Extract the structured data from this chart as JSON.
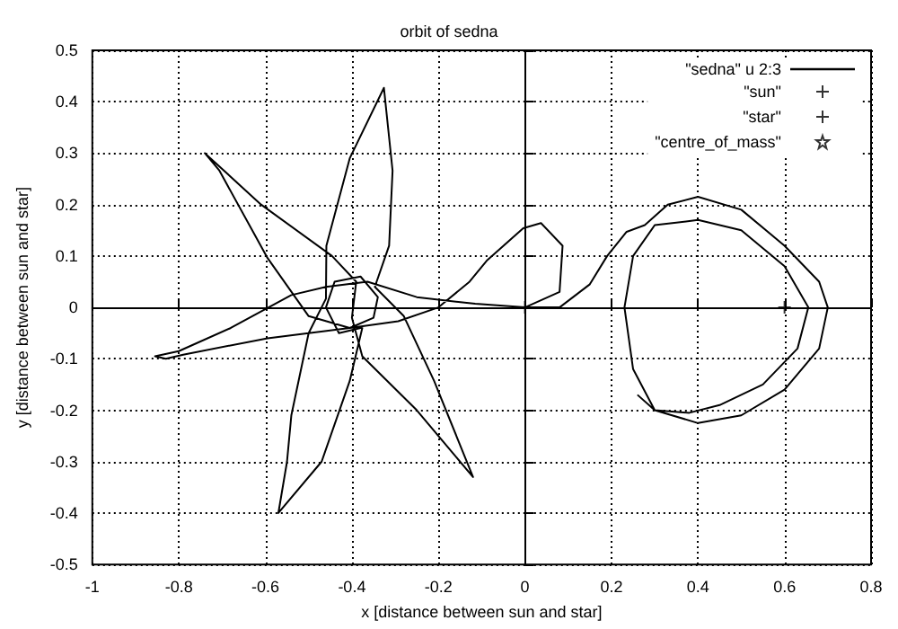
{
  "chart_data": {
    "type": "line",
    "title": "orbit of sedna",
    "xlabel": "x [distance between sun and star]",
    "ylabel": "y [distance between sun and star]",
    "xlim": [
      -1,
      0.8
    ],
    "xticks": [
      -1,
      -0.8,
      -0.6,
      -0.4,
      -0.2,
      0,
      0.2,
      0.4,
      0.6,
      0.8
    ],
    "ylim": [
      -0.5,
      0.5
    ],
    "yticks": [
      -0.5,
      -0.4,
      -0.3,
      -0.2,
      -0.1,
      0,
      0.1,
      0.2,
      0.3,
      0.4,
      0.5
    ],
    "grid": true,
    "legend": "top right",
    "line_style": "solid",
    "series": [
      {
        "name": "\"sedna\" u 2:3",
        "marker": "none",
        "color": "#000000",
        "x": [
          0,
          -0.115,
          -0.25,
          -0.364,
          -0.46,
          -0.54,
          -0.68,
          -0.8,
          -0.855,
          -0.83,
          -0.79,
          -0.595,
          -0.405,
          -0.35,
          -0.34,
          -0.38,
          -0.44,
          -0.46,
          -0.43,
          -0.38,
          -0.376,
          -0.405,
          -0.47,
          -0.57,
          -0.55,
          -0.54,
          -0.5,
          -0.46,
          -0.459,
          -0.405,
          -0.326,
          -0.306,
          -0.314,
          -0.347,
          -0.28,
          -0.21,
          -0.12,
          -0.25,
          -0.376,
          -0.4,
          -0.39,
          -0.446,
          -0.61,
          -0.74,
          -0.707,
          -0.595,
          -0.5,
          -0.405,
          -0.293,
          -0.2,
          -0.128,
          -0.087,
          -0.004,
          0.037,
          0.087,
          0.08,
          0,
          0.08,
          0.15,
          0.19,
          0.235,
          0.277,
          0.33,
          0.4,
          0.5,
          0.6,
          0.68,
          0.7,
          0.68,
          0.6,
          0.5,
          0.4,
          0.3,
          0.25,
          0.23,
          0.25,
          0.3,
          0.4,
          0.5,
          0.6,
          0.655,
          0.63,
          0.55,
          0.45,
          0.38,
          0.3,
          0.26
        ],
        "values": [
          0,
          0.007,
          0.02,
          0.05,
          0.04,
          0.024,
          -0.04,
          -0.085,
          -0.095,
          -0.1,
          -0.092,
          -0.06,
          -0.04,
          -0.02,
          0.02,
          0.06,
          0.05,
          0,
          -0.05,
          -0.04,
          -0.04,
          -0.143,
          -0.3,
          -0.4,
          -0.3,
          -0.21,
          -0.05,
          0.017,
          0.12,
          0.29,
          0.427,
          0.266,
          0.12,
          0.04,
          -0.017,
          -0.143,
          -0.33,
          -0.2,
          -0.095,
          -0.02,
          0.05,
          0.1,
          0.2,
          0.3,
          0.267,
          0.096,
          -0.017,
          -0.04,
          -0.027,
          0,
          0.05,
          0.092,
          0.154,
          0.164,
          0.12,
          0.03,
          0,
          0,
          0.045,
          0.1,
          0.147,
          0.16,
          0.2,
          0.215,
          0.19,
          0.12,
          0.05,
          0,
          -0.08,
          -0.16,
          -0.21,
          -0.225,
          -0.2,
          -0.12,
          0,
          0.1,
          0.16,
          0.17,
          0.15,
          0.08,
          0,
          -0.08,
          -0.15,
          -0.19,
          -0.205,
          -0.2,
          -0.17
        ]
      },
      {
        "name": "\"sun\"",
        "type": "scatter",
        "marker": "cross",
        "color": "#000000",
        "x": [
          0
        ],
        "values": [
          0
        ]
      },
      {
        "name": "\"star\"",
        "type": "scatter",
        "marker": "cross",
        "color": "#000000",
        "x": [
          0.6
        ],
        "values": [
          0
        ]
      },
      {
        "name": "\"centre_of_mass\"",
        "type": "scatter",
        "marker": "star",
        "color": "#000000",
        "x": [
          null
        ],
        "values": [
          null
        ]
      }
    ]
  }
}
